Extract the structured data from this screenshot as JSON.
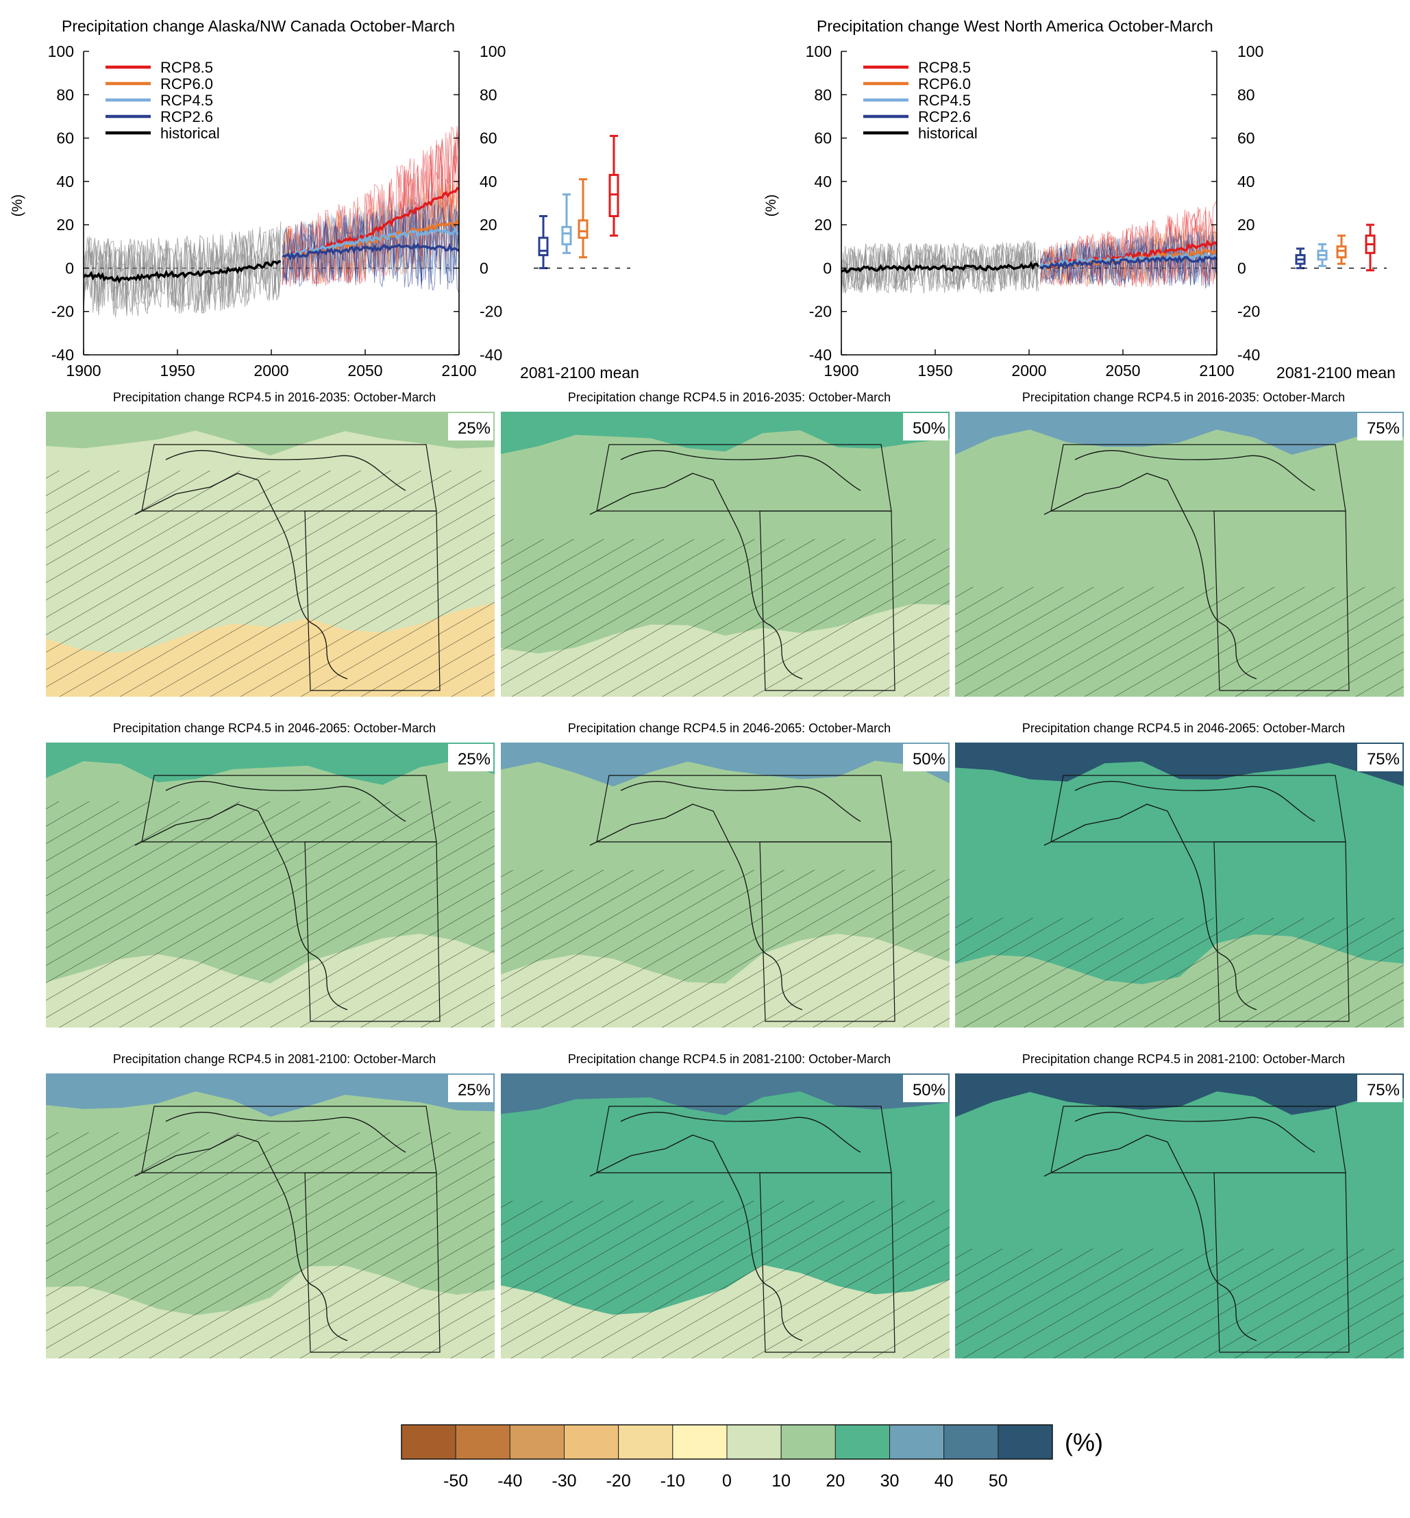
{
  "chart_data": [
    {
      "type": "line",
      "id": "ts-alaska",
      "title": "Precipitation change Alaska/NW Canada October-March",
      "ylabel": "(%)",
      "xlabel": "",
      "xlim": [
        1900,
        2100
      ],
      "ylim": [
        -40,
        100
      ],
      "xticks": [
        1900,
        1950,
        2000,
        2050,
        2100
      ],
      "yticks": [
        -40,
        -20,
        0,
        20,
        40,
        60,
        80,
        100
      ],
      "legend": {
        "placement": "top-left",
        "entries": [
          "RCP8.5",
          "RCP6.0",
          "RCP4.5",
          "RCP2.6",
          "historical"
        ]
      },
      "series": [
        {
          "name": "historical",
          "color": "#000000",
          "x": [
            1900,
            1920,
            1940,
            1960,
            1980,
            2000,
            2005
          ],
          "y": [
            -3,
            -5,
            -3,
            -3,
            -1,
            2,
            4
          ]
        },
        {
          "name": "RCP2.6",
          "color": "#2b3f8f",
          "x": [
            2006,
            2025,
            2050,
            2075,
            2100
          ],
          "y": [
            5,
            7,
            9,
            10,
            9
          ]
        },
        {
          "name": "RCP4.5",
          "color": "#79aedc",
          "x": [
            2006,
            2025,
            2050,
            2075,
            2100
          ],
          "y": [
            5,
            9,
            13,
            16,
            17
          ]
        },
        {
          "name": "RCP6.0",
          "color": "#e8772a",
          "x": [
            2006,
            2025,
            2050,
            2075,
            2100
          ],
          "y": [
            5,
            8,
            12,
            17,
            21
          ]
        },
        {
          "name": "RCP8.5",
          "color": "#e31a1c",
          "x": [
            2006,
            2025,
            2050,
            2075,
            2100
          ],
          "y": [
            5,
            9,
            15,
            26,
            37
          ]
        }
      ],
      "boxplot": {
        "label": "2081-2100 mean",
        "boxes": [
          {
            "name": "RCP2.6",
            "color": "#2b3f8f",
            "min": 0,
            "q1": 6,
            "median": 8,
            "q3": 14,
            "max": 24
          },
          {
            "name": "RCP4.5",
            "color": "#79aedc",
            "min": 7,
            "q1": 11,
            "median": 16,
            "q3": 19,
            "max": 34
          },
          {
            "name": "RCP6.0",
            "color": "#e8772a",
            "min": 5,
            "q1": 14,
            "median": 17,
            "q3": 22,
            "max": 41
          },
          {
            "name": "RCP8.5",
            "color": "#e31a1c",
            "min": 15,
            "q1": 24,
            "median": 34,
            "q3": 43,
            "max": 61
          }
        ]
      }
    },
    {
      "type": "line",
      "id": "ts-wna",
      "title": "Precipitation change West North America October-March",
      "ylabel": "(%)",
      "xlabel": "",
      "xlim": [
        1900,
        2100
      ],
      "ylim": [
        -40,
        100
      ],
      "xticks": [
        1900,
        1950,
        2000,
        2050,
        2100
      ],
      "yticks": [
        -40,
        -20,
        0,
        20,
        40,
        60,
        80,
        100
      ],
      "legend": {
        "placement": "top-left",
        "entries": [
          "RCP8.5",
          "RCP6.0",
          "RCP4.5",
          "RCP2.6",
          "historical"
        ]
      },
      "series": [
        {
          "name": "historical",
          "color": "#000000",
          "x": [
            1900,
            1920,
            1940,
            1960,
            1980,
            2000,
            2005
          ],
          "y": [
            -1,
            0,
            0,
            0,
            0,
            1,
            1
          ]
        },
        {
          "name": "RCP2.6",
          "color": "#2b3f8f",
          "x": [
            2006,
            2025,
            2050,
            2075,
            2100
          ],
          "y": [
            1,
            2,
            3,
            4,
            4
          ]
        },
        {
          "name": "RCP4.5",
          "color": "#79aedc",
          "x": [
            2006,
            2025,
            2050,
            2075,
            2100
          ],
          "y": [
            1,
            3,
            4,
            5,
            6
          ]
        },
        {
          "name": "RCP6.0",
          "color": "#e8772a",
          "x": [
            2006,
            2025,
            2050,
            2075,
            2100
          ],
          "y": [
            1,
            2,
            4,
            6,
            8
          ]
        },
        {
          "name": "RCP8.5",
          "color": "#e31a1c",
          "x": [
            2006,
            2025,
            2050,
            2075,
            2100
          ],
          "y": [
            1,
            3,
            5,
            8,
            12
          ]
        }
      ],
      "boxplot": {
        "label": "2081-2100 mean",
        "boxes": [
          {
            "name": "RCP2.6",
            "color": "#2b3f8f",
            "min": 0,
            "q1": 2,
            "median": 4,
            "q3": 6,
            "max": 9
          },
          {
            "name": "RCP4.5",
            "color": "#79aedc",
            "min": 1,
            "q1": 4,
            "median": 6,
            "q3": 8,
            "max": 11
          },
          {
            "name": "RCP6.0",
            "color": "#e8772a",
            "min": 2,
            "q1": 5,
            "median": 8,
            "q3": 10,
            "max": 15
          },
          {
            "name": "RCP8.5",
            "color": "#e31a1c",
            "min": -1,
            "q1": 7,
            "median": 11,
            "q3": 15,
            "max": 20
          }
        ]
      }
    },
    {
      "type": "heatmap",
      "id": "maps",
      "title_template": "Precipitation change RCP4.5 in {period}: October-March",
      "periods": [
        "2016-2035",
        "2046-2065",
        "2081-2100"
      ],
      "percentiles": [
        "25%",
        "50%",
        "75%"
      ],
      "panels": [
        {
          "period": "2016-2035",
          "percentile": "25%",
          "title": "Precipitation change RCP4.5 in 2016-2035: October-March",
          "north_class": 10,
          "mid_class": 0,
          "south_class": -10
        },
        {
          "period": "2016-2035",
          "percentile": "50%",
          "title": "Precipitation change RCP4.5 in 2016-2035: October-March",
          "north_class": 20,
          "mid_class": 10,
          "south_class": 0
        },
        {
          "period": "2016-2035",
          "percentile": "75%",
          "title": "Precipitation change RCP4.5 in 2016-2035: October-March",
          "north_class": 30,
          "mid_class": 10,
          "south_class": 10
        },
        {
          "period": "2046-2065",
          "percentile": "25%",
          "title": "Precipitation change RCP4.5 in 2046-2065: October-March",
          "north_class": 20,
          "mid_class": 10,
          "south_class": 0
        },
        {
          "period": "2046-2065",
          "percentile": "50%",
          "title": "Precipitation change RCP4.5 in 2046-2065: October-March",
          "north_class": 30,
          "mid_class": 10,
          "south_class": 0
        },
        {
          "period": "2046-2065",
          "percentile": "75%",
          "title": "Precipitation change RCP4.5 in 2046-2065: October-March",
          "north_class": 50,
          "mid_class": 20,
          "south_class": 10
        },
        {
          "period": "2081-2100",
          "percentile": "25%",
          "title": "Precipitation change RCP4.5 in 2081-2100: October-March",
          "north_class": 30,
          "mid_class": 10,
          "south_class": 0
        },
        {
          "period": "2081-2100",
          "percentile": "50%",
          "title": "Precipitation change RCP4.5 in 2081-2100: October-March",
          "north_class": 40,
          "mid_class": 20,
          "south_class": 0
        },
        {
          "period": "2081-2100",
          "percentile": "75%",
          "title": "Precipitation change RCP4.5 in 2081-2100: October-March",
          "north_class": 50,
          "mid_class": 20,
          "south_class": 20
        }
      ]
    },
    {
      "type": "bar",
      "id": "colorbar",
      "unit": "(%)",
      "ticks": [
        -50,
        -40,
        -30,
        -20,
        -10,
        0,
        10,
        20,
        30,
        40,
        50
      ],
      "classes": [
        -55,
        -45,
        -35,
        -25,
        -15,
        -5,
        5,
        15,
        25,
        35,
        45,
        55
      ],
      "colors": [
        "#a65f2a",
        "#c27a3c",
        "#d69c5c",
        "#eec27c",
        "#f6dc9c",
        "#fff3b8",
        "#d4e4bc",
        "#a2cd9a",
        "#52b58e",
        "#6fa1b8",
        "#4a7a94",
        "#2b5570"
      ]
    }
  ]
}
